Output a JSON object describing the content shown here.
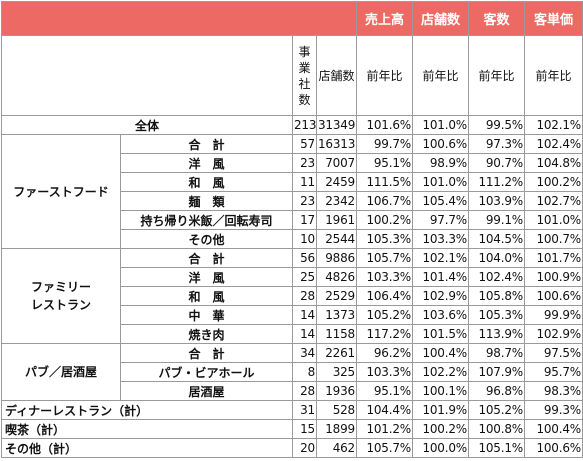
{
  "header": {
    "metrics": [
      "売上高",
      "店舗数",
      "客数",
      "客単価"
    ],
    "companies_label_chars": [
      "事",
      "業",
      "社",
      "数"
    ],
    "stores_label": "店舗数",
    "yoy_label": "前年比"
  },
  "rows": [
    {
      "group": "",
      "label": "全体",
      "companies": "213",
      "stores": "31349",
      "sales": "101.6%",
      "store_count": "101.0%",
      "customers": "99.5%",
      "unit_price": "102.1%"
    },
    {
      "group": "ファーストフード",
      "label": "合　計",
      "companies": "57",
      "stores": "16313",
      "sales": "99.7%",
      "store_count": "100.6%",
      "customers": "97.3%",
      "unit_price": "102.4%"
    },
    {
      "group": "ファーストフード",
      "label": "洋　風",
      "companies": "23",
      "stores": "7007",
      "sales": "95.1%",
      "store_count": "98.9%",
      "customers": "90.7%",
      "unit_price": "104.8%"
    },
    {
      "group": "ファーストフード",
      "label": "和　風",
      "companies": "11",
      "stores": "2459",
      "sales": "111.5%",
      "store_count": "101.0%",
      "customers": "111.2%",
      "unit_price": "100.2%"
    },
    {
      "group": "ファーストフード",
      "label": "麺　類",
      "companies": "23",
      "stores": "2342",
      "sales": "106.7%",
      "store_count": "105.4%",
      "customers": "103.9%",
      "unit_price": "102.7%"
    },
    {
      "group": "ファーストフード",
      "label": "持ち帰り米飯／回転寿司",
      "companies": "17",
      "stores": "1961",
      "sales": "100.2%",
      "store_count": "97.7%",
      "customers": "99.1%",
      "unit_price": "101.0%"
    },
    {
      "group": "ファーストフード",
      "label": "その他",
      "companies": "10",
      "stores": "2544",
      "sales": "105.3%",
      "store_count": "103.3%",
      "customers": "104.5%",
      "unit_price": "100.7%"
    },
    {
      "group": "ファミリーレストラン",
      "label": "合　計",
      "companies": "56",
      "stores": "9886",
      "sales": "105.7%",
      "store_count": "102.1%",
      "customers": "104.0%",
      "unit_price": "101.7%"
    },
    {
      "group": "ファミリーレストラン",
      "label": "洋　風",
      "companies": "25",
      "stores": "4826",
      "sales": "103.3%",
      "store_count": "101.4%",
      "customers": "102.4%",
      "unit_price": "100.9%"
    },
    {
      "group": "ファミリーレストラン",
      "label": "和　風",
      "companies": "28",
      "stores": "2529",
      "sales": "106.4%",
      "store_count": "102.9%",
      "customers": "105.8%",
      "unit_price": "100.6%"
    },
    {
      "group": "ファミリーレストラン",
      "label": "中　華",
      "companies": "14",
      "stores": "1373",
      "sales": "105.2%",
      "store_count": "103.6%",
      "customers": "105.3%",
      "unit_price": "99.9%"
    },
    {
      "group": "ファミリーレストラン",
      "label": "焼き肉",
      "companies": "14",
      "stores": "1158",
      "sales": "117.2%",
      "store_count": "101.5%",
      "customers": "113.9%",
      "unit_price": "102.9%"
    },
    {
      "group": "パブ／居酒屋",
      "label": "合　計",
      "companies": "34",
      "stores": "2261",
      "sales": "96.2%",
      "store_count": "100.4%",
      "customers": "98.7%",
      "unit_price": "97.5%"
    },
    {
      "group": "パブ／居酒屋",
      "label": "パブ・ビアホール",
      "companies": "8",
      "stores": "325",
      "sales": "103.3%",
      "store_count": "102.2%",
      "customers": "107.9%",
      "unit_price": "95.7%"
    },
    {
      "group": "パブ／居酒屋",
      "label": "居酒屋",
      "companies": "28",
      "stores": "1936",
      "sales": "95.1%",
      "store_count": "100.1%",
      "customers": "96.8%",
      "unit_price": "98.3%"
    },
    {
      "group": "",
      "label": "ディナーレストラン（計）",
      "companies": "31",
      "stores": "528",
      "sales": "104.4%",
      "store_count": "101.9%",
      "customers": "105.2%",
      "unit_price": "99.3%"
    },
    {
      "group": "",
      "label": "喫茶（計）",
      "companies": "15",
      "stores": "1899",
      "sales": "101.2%",
      "store_count": "100.2%",
      "customers": "100.8%",
      "unit_price": "100.4%"
    },
    {
      "group": "",
      "label": "その他（計）",
      "companies": "20",
      "stores": "462",
      "sales": "105.7%",
      "store_count": "100.0%",
      "customers": "105.1%",
      "unit_price": "100.6%"
    }
  ],
  "groups": {
    "fast_food": [
      "ファーストフード"
    ],
    "family": [
      "ファミリー",
      "レストラン"
    ],
    "pub": [
      "パブ／居酒屋"
    ]
  }
}
